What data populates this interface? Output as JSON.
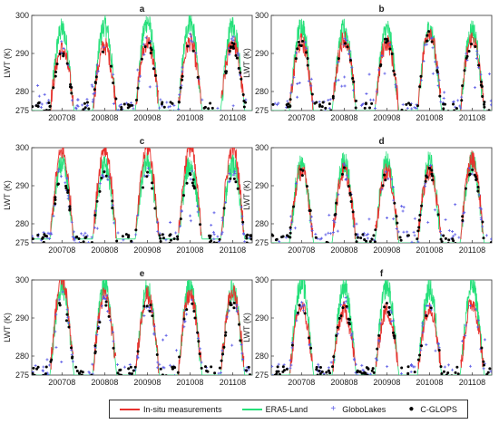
{
  "figure": {
    "panel_labels": [
      "a",
      "b",
      "c",
      "d",
      "e",
      "f"
    ]
  },
  "colors": {
    "insitu": "#e8322e",
    "era5": "#25e07a",
    "globolakes": "#5a5ae6",
    "cglops": "#000000"
  },
  "legend": {
    "insitu": "In-situ measurements",
    "era5": "ERA5-Land",
    "globolakes": "GloboLakes",
    "cglops": "C-GLOPS"
  },
  "chart_data": [
    {
      "type": "line",
      "label": "a",
      "ylabel": "LWT (K)",
      "ylim": [
        275,
        300
      ],
      "yticks": [
        275,
        280,
        290,
        300
      ],
      "xticks": [
        "200708",
        "200808",
        "200908",
        "201008",
        "201108"
      ],
      "series": [
        {
          "name": "ERA5-Land",
          "summer_peak_K": [
            297,
            298,
            299,
            299,
            298
          ],
          "winter_min_K": 275
        },
        {
          "name": "In-situ measurements",
          "summer_peak_K": [
            291,
            292,
            293,
            293,
            293
          ]
        },
        {
          "name": "GloboLakes",
          "summer_peak_K": [
            292,
            293,
            293,
            294,
            293
          ]
        },
        {
          "name": "C-GLOPS",
          "summer_peak_K": [
            290,
            292,
            293,
            293,
            292
          ]
        }
      ]
    },
    {
      "type": "line",
      "label": "b",
      "ylabel": "LWT (K)",
      "ylim": [
        275,
        300
      ],
      "yticks": [
        275,
        280,
        290,
        300
      ],
      "xticks": [
        "200708",
        "200808",
        "200908",
        "201008",
        "201108"
      ],
      "series": [
        {
          "name": "ERA5-Land",
          "summer_peak_K": [
            298,
            297,
            297,
            297,
            297
          ],
          "winter_min_K": 275
        },
        {
          "name": "In-situ measurements",
          "summer_peak_K": [
            293,
            294,
            293,
            296,
            294
          ]
        },
        {
          "name": "GloboLakes",
          "summer_peak_K": [
            294,
            294,
            294,
            295,
            294
          ]
        },
        {
          "name": "C-GLOPS",
          "summer_peak_K": [
            293,
            294,
            293,
            295,
            293
          ]
        }
      ]
    },
    {
      "type": "line",
      "label": "c",
      "ylabel": "LWT (K)",
      "ylim": [
        275,
        300
      ],
      "yticks": [
        275,
        280,
        290,
        300
      ],
      "xticks": [
        "200708",
        "200808",
        "200908",
        "201008",
        "201108"
      ],
      "series": [
        {
          "name": "ERA5-Land",
          "summer_peak_K": [
            296,
            296,
            297,
            296,
            296
          ],
          "winter_min_K": 276
        },
        {
          "name": "In-situ measurements",
          "summer_peak_K": [
            299,
            300,
            300,
            300,
            300
          ]
        },
        {
          "name": "GloboLakes",
          "summer_peak_K": [
            294,
            294,
            294,
            293,
            294
          ]
        },
        {
          "name": "C-GLOPS",
          "summer_peak_K": [
            293,
            293,
            293,
            293,
            293
          ]
        }
      ]
    },
    {
      "type": "line",
      "label": "d",
      "ylabel": "LWT (K)",
      "ylim": [
        275,
        300
      ],
      "yticks": [
        275,
        280,
        290,
        300
      ],
      "xticks": [
        "200708",
        "200808",
        "200908",
        "201008",
        "201108"
      ],
      "series": [
        {
          "name": "ERA5-Land",
          "summer_peak_K": [
            296,
            297,
            297,
            297,
            297
          ],
          "winter_min_K": 275
        },
        {
          "name": "In-situ measurements",
          "summer_peak_K": [
            294,
            294,
            294,
            294,
            297
          ]
        },
        {
          "name": "GloboLakes",
          "summer_peak_K": [
            294,
            294,
            294,
            294,
            294
          ]
        },
        {
          "name": "C-GLOPS",
          "summer_peak_K": [
            294,
            294,
            293,
            294,
            295
          ]
        }
      ]
    },
    {
      "type": "line",
      "label": "e",
      "ylabel": "LWT (K)",
      "ylim": [
        275,
        300
      ],
      "yticks": [
        275,
        280,
        290,
        300
      ],
      "xticks": [
        "200708",
        "200808",
        "200908",
        "201008",
        "201108"
      ],
      "series": [
        {
          "name": "ERA5-Land",
          "summer_peak_K": [
            299,
            299,
            298,
            299,
            298
          ],
          "winter_min_K": 275
        },
        {
          "name": "In-situ measurements",
          "summer_peak_K": [
            300,
            296,
            296,
            296,
            297
          ]
        },
        {
          "name": "GloboLakes",
          "summer_peak_K": [
            295,
            295,
            294,
            295,
            295
          ]
        },
        {
          "name": "C-GLOPS",
          "summer_peak_K": [
            294,
            294,
            294,
            294,
            294
          ]
        }
      ]
    },
    {
      "type": "line",
      "label": "f",
      "ylabel": "LWT (K)",
      "ylim": [
        275,
        300
      ],
      "yticks": [
        275,
        280,
        290,
        300
      ],
      "xticks": [
        "200708",
        "200808",
        "200908",
        "201008",
        "201108"
      ],
      "series": [
        {
          "name": "ERA5-Land",
          "summer_peak_K": [
            300,
            299,
            299,
            298,
            299
          ],
          "winter_min_K": 275
        },
        {
          "name": "In-situ measurements",
          "summer_peak_K": [
            293,
            292,
            292,
            293,
            294
          ]
        },
        {
          "name": "GloboLakes",
          "summer_peak_K": [
            294,
            294,
            294,
            294,
            294
          ]
        },
        {
          "name": "C-GLOPS",
          "summer_peak_K": [
            293,
            293,
            293,
            293,
            293
          ]
        }
      ]
    }
  ]
}
